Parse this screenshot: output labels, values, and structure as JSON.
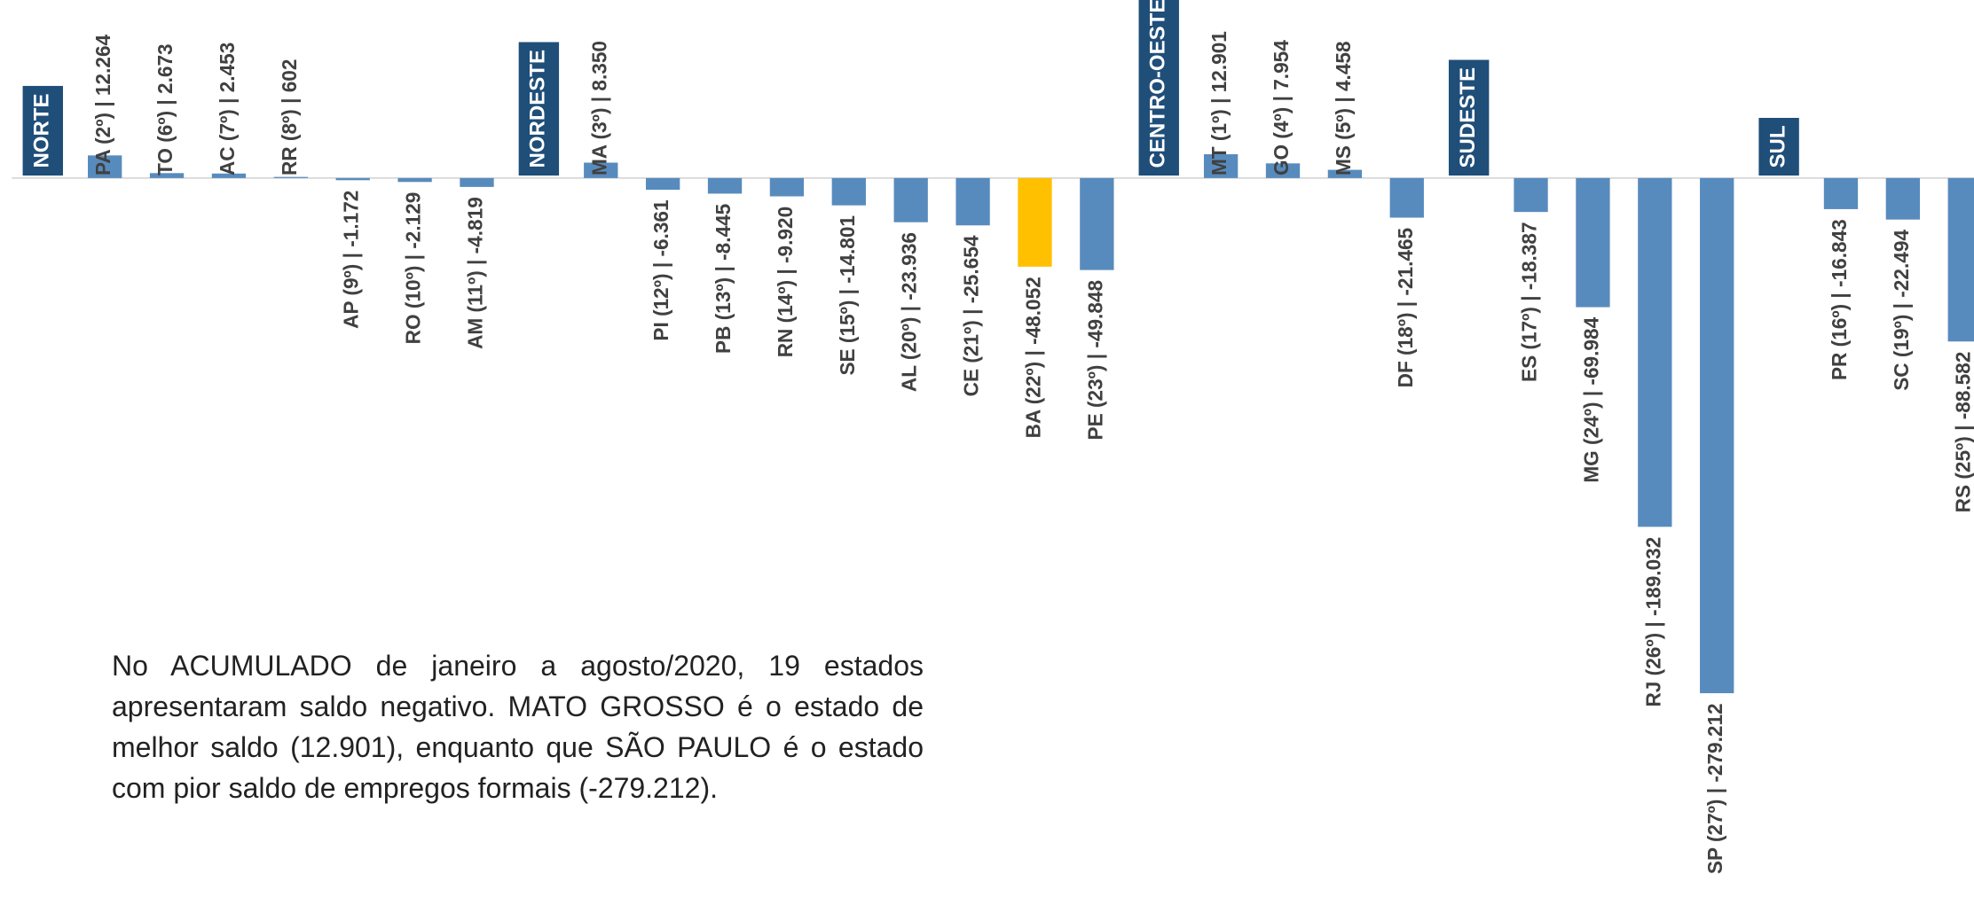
{
  "chart_data": {
    "type": "bar",
    "categories": [
      "NORTE",
      "PA (2º) | 12.264",
      "TO (6º) | 2.673",
      "AC (7º) | 2.453",
      "RR (8º) | 602",
      "AP (9º) | -1.172",
      "RO (10º) | -2.129",
      "AM (11º) | -4.819",
      "NORDESTE",
      "MA (3º) | 8.350",
      "PI (12º) | -6.361",
      "PB (13º) | -8.445",
      "RN (14º) | -9.920",
      "SE (15º) | -14.801",
      "AL (20º) | -23.936",
      "CE (21º) | -25.654",
      "BA (22º) | -48.052",
      "PE (23º) | -49.848",
      "CENTRO-OESTE",
      "MT (1º) | 12.901",
      "GO (4º) | 7.954",
      "MS (5º) | 4.458",
      "DF (18º) | -21.465",
      "SUDESTE",
      "ES (17º) | -18.387",
      "MG (24º) | -69.984",
      "RJ (26º) | -189.032",
      "SP (27º) | -279.212",
      "SUL",
      "PR (16º) | -16.843",
      "SC (19º) | -22.494",
      "RS (25º) | -88.582"
    ],
    "values": [
      null,
      12264,
      2673,
      2453,
      602,
      -1172,
      -2129,
      -4819,
      null,
      8350,
      -6361,
      -8445,
      -9920,
      -14801,
      -23936,
      -25654,
      -48052,
      -49848,
      null,
      12901,
      7954,
      4458,
      -21465,
      null,
      -18387,
      -69984,
      -189032,
      -279212,
      null,
      -16843,
      -22494,
      -88582
    ],
    "colors": [
      null,
      "#588bbd",
      "#588bbd",
      "#588bbd",
      "#588bbd",
      "#588bbd",
      "#588bbd",
      "#588bbd",
      null,
      "#588bbd",
      "#588bbd",
      "#588bbd",
      "#588bbd",
      "#588bbd",
      "#588bbd",
      "#588bbd",
      "#ffc000",
      "#588bbd",
      null,
      "#588bbd",
      "#588bbd",
      "#588bbd",
      "#588bbd",
      null,
      "#588bbd",
      "#588bbd",
      "#588bbd",
      "#588bbd",
      null,
      "#588bbd",
      "#588bbd",
      "#588bbd"
    ],
    "region_color": "#1f4e79",
    "ylim": [
      -394000,
      96500
    ],
    "note": "No ACUMULADO de janeiro a agosto/2020, 19 estados apresentaram saldo negativo. MATO GROSSO é o estado de melhor saldo (12.901), enquanto que SÃO PAULO é o estado com pior saldo de empregos formais (-279.212)."
  }
}
